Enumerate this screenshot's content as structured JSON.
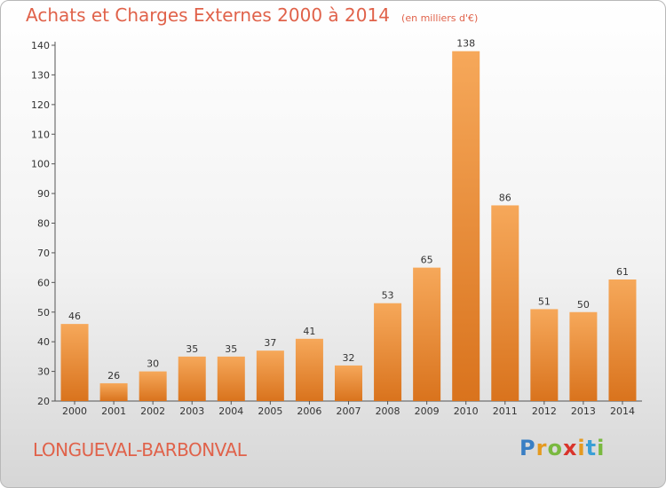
{
  "header": {
    "title": "Achats et Charges Externes 2000 à 2014",
    "unit": "(en milliers d'€)"
  },
  "footer": {
    "town": "LONGUEVAL-BARBONVAL",
    "logo": "Proxiti"
  },
  "colors": {
    "bar_top": "#f6a85a",
    "bar_bottom": "#d9731d",
    "title": "#e0624a"
  },
  "chart_data": {
    "type": "bar",
    "title": "Achats et Charges Externes 2000 à 2014",
    "categories": [
      "2000",
      "2001",
      "2002",
      "2003",
      "2004",
      "2005",
      "2006",
      "2007",
      "2008",
      "2009",
      "2010",
      "2011",
      "2012",
      "2013",
      "2014"
    ],
    "values": [
      46,
      26,
      30,
      35,
      35,
      37,
      41,
      32,
      53,
      65,
      138,
      86,
      51,
      50,
      61
    ],
    "ylim": [
      20,
      140
    ],
    "yticks": [
      20,
      30,
      40,
      50,
      60,
      70,
      80,
      90,
      100,
      110,
      120,
      130,
      140
    ],
    "grid": false
  }
}
